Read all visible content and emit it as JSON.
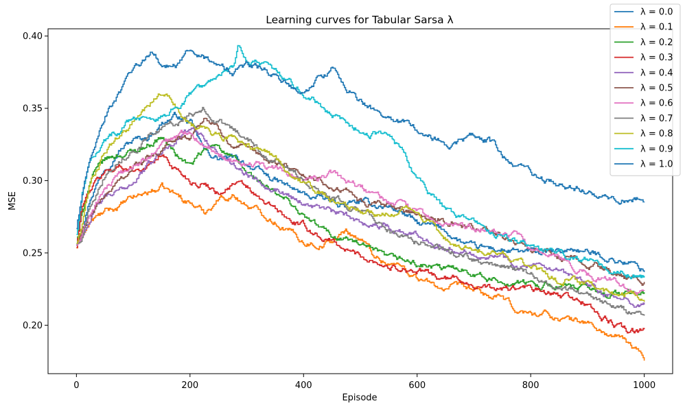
{
  "chart_data": {
    "type": "line",
    "title": "Learning curves for Tabular Sarsa λ",
    "xlabel": "Episode",
    "ylabel": "MSE",
    "xlim": [
      -50,
      1050
    ],
    "ylim": [
      0.1665,
      0.405
    ],
    "xticks": [
      0,
      200,
      400,
      600,
      800,
      1000
    ],
    "xtick_labels": [
      "0",
      "200",
      "400",
      "600",
      "800",
      "1000"
    ],
    "yticks": [
      0.2,
      0.25,
      0.3,
      0.35,
      0.4
    ],
    "ytick_labels": [
      "0.20",
      "0.25",
      "0.30",
      "0.35",
      "0.40"
    ],
    "grid": false,
    "legend_position": "top-right",
    "series": [
      {
        "name": "λ = 0.0",
        "color": "#1f77b4",
        "x": [
          0,
          10,
          25,
          50,
          75,
          100,
          125,
          150,
          175,
          200,
          225,
          250,
          275,
          300,
          325,
          350,
          375,
          400,
          425,
          450,
          475,
          500,
          525,
          550,
          575,
          600,
          625,
          650,
          675,
          700,
          725,
          750,
          775,
          800,
          825,
          850,
          875,
          900,
          925,
          950,
          975,
          1000
        ],
        "values": [
          0.256,
          0.27,
          0.29,
          0.31,
          0.322,
          0.328,
          0.33,
          0.34,
          0.345,
          0.34,
          0.32,
          0.315,
          0.315,
          0.312,
          0.305,
          0.3,
          0.295,
          0.29,
          0.288,
          0.285,
          0.283,
          0.285,
          0.283,
          0.282,
          0.278,
          0.27,
          0.268,
          0.265,
          0.258,
          0.253,
          0.253,
          0.252,
          0.25,
          0.25,
          0.25,
          0.25,
          0.253,
          0.25,
          0.248,
          0.245,
          0.243,
          0.238
        ]
      },
      {
        "name": "λ = 0.1",
        "color": "#ff7f0e",
        "x": [
          0,
          10,
          25,
          50,
          75,
          100,
          125,
          150,
          175,
          200,
          225,
          250,
          275,
          300,
          325,
          350,
          375,
          400,
          425,
          450,
          475,
          500,
          525,
          550,
          575,
          600,
          625,
          650,
          675,
          700,
          725,
          750,
          775,
          800,
          825,
          850,
          875,
          900,
          925,
          950,
          975,
          1000
        ],
        "values": [
          0.254,
          0.262,
          0.272,
          0.278,
          0.282,
          0.288,
          0.292,
          0.295,
          0.29,
          0.285,
          0.278,
          0.288,
          0.29,
          0.283,
          0.278,
          0.272,
          0.265,
          0.258,
          0.256,
          0.258,
          0.265,
          0.26,
          0.248,
          0.243,
          0.24,
          0.233,
          0.228,
          0.225,
          0.226,
          0.224,
          0.22,
          0.218,
          0.21,
          0.208,
          0.208,
          0.205,
          0.203,
          0.202,
          0.195,
          0.192,
          0.186,
          0.178
        ]
      },
      {
        "name": "λ = 0.2",
        "color": "#2ca02c",
        "x": [
          0,
          10,
          25,
          50,
          75,
          100,
          125,
          150,
          175,
          200,
          225,
          250,
          275,
          300,
          325,
          350,
          375,
          400,
          425,
          450,
          475,
          500,
          525,
          550,
          575,
          600,
          625,
          650,
          675,
          700,
          725,
          750,
          775,
          800,
          825,
          850,
          875,
          900,
          925,
          950,
          975,
          1000
        ],
        "values": [
          0.256,
          0.278,
          0.302,
          0.314,
          0.318,
          0.32,
          0.325,
          0.33,
          0.318,
          0.31,
          0.32,
          0.325,
          0.315,
          0.305,
          0.298,
          0.29,
          0.285,
          0.275,
          0.268,
          0.262,
          0.26,
          0.255,
          0.25,
          0.245,
          0.245,
          0.242,
          0.24,
          0.238,
          0.24,
          0.237,
          0.232,
          0.23,
          0.23,
          0.228,
          0.228,
          0.228,
          0.225,
          0.225,
          0.222,
          0.222,
          0.222,
          0.222
        ]
      },
      {
        "name": "λ = 0.3",
        "color": "#d62728",
        "x": [
          0,
          10,
          25,
          50,
          75,
          100,
          125,
          150,
          175,
          200,
          225,
          250,
          275,
          300,
          325,
          350,
          375,
          400,
          425,
          450,
          475,
          500,
          525,
          550,
          575,
          600,
          625,
          650,
          675,
          700,
          725,
          750,
          775,
          800,
          825,
          850,
          875,
          900,
          925,
          950,
          975,
          1000
        ],
        "values": [
          0.254,
          0.282,
          0.295,
          0.306,
          0.31,
          0.308,
          0.31,
          0.318,
          0.308,
          0.3,
          0.298,
          0.292,
          0.298,
          0.295,
          0.285,
          0.28,
          0.272,
          0.268,
          0.262,
          0.258,
          0.252,
          0.248,
          0.245,
          0.24,
          0.24,
          0.237,
          0.235,
          0.232,
          0.232,
          0.228,
          0.225,
          0.225,
          0.225,
          0.225,
          0.222,
          0.22,
          0.218,
          0.215,
          0.205,
          0.2,
          0.195,
          0.195
        ]
      },
      {
        "name": "λ = 0.4",
        "color": "#9467bd",
        "x": [
          0,
          10,
          25,
          50,
          75,
          100,
          125,
          150,
          175,
          200,
          225,
          250,
          275,
          300,
          325,
          350,
          375,
          400,
          425,
          450,
          475,
          500,
          525,
          550,
          575,
          600,
          625,
          650,
          675,
          700,
          725,
          750,
          775,
          800,
          825,
          850,
          875,
          900,
          925,
          950,
          975,
          1000
        ],
        "values": [
          0.256,
          0.262,
          0.275,
          0.288,
          0.292,
          0.3,
          0.31,
          0.32,
          0.33,
          0.335,
          0.33,
          0.318,
          0.312,
          0.305,
          0.3,
          0.295,
          0.29,
          0.285,
          0.282,
          0.278,
          0.275,
          0.272,
          0.27,
          0.268,
          0.265,
          0.262,
          0.258,
          0.255,
          0.252,
          0.25,
          0.25,
          0.248,
          0.242,
          0.24,
          0.238,
          0.235,
          0.232,
          0.228,
          0.222,
          0.218,
          0.216,
          0.215
        ]
      },
      {
        "name": "λ = 0.5",
        "color": "#8c564b",
        "x": [
          0,
          10,
          25,
          50,
          75,
          100,
          125,
          150,
          175,
          200,
          225,
          250,
          275,
          300,
          325,
          350,
          375,
          400,
          425,
          450,
          475,
          500,
          525,
          550,
          575,
          600,
          625,
          650,
          675,
          700,
          725,
          750,
          775,
          800,
          825,
          850,
          875,
          900,
          925,
          950,
          975,
          1000
        ],
        "values": [
          0.255,
          0.265,
          0.275,
          0.29,
          0.3,
          0.31,
          0.315,
          0.32,
          0.33,
          0.33,
          0.345,
          0.335,
          0.325,
          0.32,
          0.315,
          0.312,
          0.31,
          0.305,
          0.3,
          0.295,
          0.292,
          0.285,
          0.282,
          0.282,
          0.28,
          0.278,
          0.275,
          0.272,
          0.27,
          0.268,
          0.265,
          0.262,
          0.258,
          0.252,
          0.25,
          0.247,
          0.245,
          0.242,
          0.24,
          0.235,
          0.232,
          0.23
        ]
      },
      {
        "name": "λ = 0.6",
        "color": "#e377c2",
        "x": [
          0,
          10,
          25,
          50,
          75,
          100,
          125,
          150,
          175,
          200,
          225,
          250,
          275,
          300,
          325,
          350,
          375,
          400,
          425,
          450,
          475,
          500,
          525,
          550,
          575,
          600,
          625,
          650,
          675,
          700,
          725,
          750,
          775,
          800,
          825,
          850,
          875,
          900,
          925,
          950,
          975,
          1000
        ],
        "values": [
          0.255,
          0.262,
          0.278,
          0.295,
          0.302,
          0.31,
          0.315,
          0.325,
          0.33,
          0.335,
          0.325,
          0.32,
          0.315,
          0.312,
          0.31,
          0.308,
          0.305,
          0.302,
          0.3,
          0.305,
          0.3,
          0.295,
          0.29,
          0.285,
          0.282,
          0.278,
          0.272,
          0.27,
          0.268,
          0.268,
          0.268,
          0.265,
          0.262,
          0.252,
          0.248,
          0.245,
          0.24,
          0.235,
          0.232,
          0.23,
          0.225,
          0.222
        ]
      },
      {
        "name": "λ = 0.7",
        "color": "#7f7f7f",
        "x": [
          0,
          10,
          25,
          50,
          75,
          100,
          125,
          150,
          175,
          200,
          225,
          250,
          275,
          300,
          325,
          350,
          375,
          400,
          425,
          450,
          475,
          500,
          525,
          550,
          575,
          600,
          625,
          650,
          675,
          700,
          725,
          750,
          775,
          800,
          825,
          850,
          875,
          900,
          925,
          950,
          975,
          1000
        ],
        "values": [
          0.256,
          0.262,
          0.285,
          0.305,
          0.315,
          0.322,
          0.33,
          0.335,
          0.34,
          0.345,
          0.35,
          0.34,
          0.335,
          0.33,
          0.32,
          0.315,
          0.308,
          0.3,
          0.295,
          0.29,
          0.285,
          0.28,
          0.272,
          0.265,
          0.262,
          0.258,
          0.255,
          0.25,
          0.248,
          0.245,
          0.242,
          0.24,
          0.238,
          0.235,
          0.23,
          0.225,
          0.222,
          0.22,
          0.216,
          0.212,
          0.208,
          0.207
        ]
      },
      {
        "name": "λ = 0.8",
        "color": "#bcbd22",
        "x": [
          0,
          10,
          25,
          50,
          75,
          100,
          125,
          150,
          175,
          200,
          225,
          250,
          275,
          300,
          325,
          350,
          375,
          400,
          425,
          450,
          475,
          500,
          525,
          550,
          575,
          600,
          625,
          650,
          675,
          700,
          725,
          750,
          775,
          800,
          825,
          850,
          875,
          900,
          925,
          950,
          975,
          1000
        ],
        "values": [
          0.256,
          0.27,
          0.3,
          0.32,
          0.33,
          0.34,
          0.35,
          0.362,
          0.35,
          0.34,
          0.335,
          0.33,
          0.33,
          0.325,
          0.32,
          0.315,
          0.305,
          0.298,
          0.292,
          0.285,
          0.282,
          0.28,
          0.278,
          0.278,
          0.28,
          0.278,
          0.27,
          0.26,
          0.255,
          0.255,
          0.252,
          0.25,
          0.245,
          0.24,
          0.235,
          0.23,
          0.232,
          0.228,
          0.225,
          0.222,
          0.222,
          0.22
        ]
      },
      {
        "name": "λ = 0.9",
        "color": "#17becf",
        "x": [
          0,
          10,
          25,
          50,
          75,
          100,
          125,
          150,
          175,
          200,
          225,
          250,
          275,
          285,
          300,
          325,
          350,
          375,
          400,
          425,
          450,
          475,
          500,
          525,
          550,
          575,
          600,
          625,
          650,
          675,
          700,
          725,
          750,
          775,
          800,
          825,
          850,
          875,
          900,
          925,
          950,
          975,
          1000
        ],
        "values": [
          0.262,
          0.29,
          0.315,
          0.328,
          0.335,
          0.345,
          0.34,
          0.345,
          0.35,
          0.36,
          0.365,
          0.37,
          0.378,
          0.393,
          0.385,
          0.38,
          0.375,
          0.37,
          0.36,
          0.355,
          0.345,
          0.34,
          0.335,
          0.332,
          0.33,
          0.32,
          0.3,
          0.29,
          0.28,
          0.275,
          0.27,
          0.265,
          0.262,
          0.258,
          0.255,
          0.252,
          0.25,
          0.247,
          0.245,
          0.24,
          0.238,
          0.236,
          0.234
        ]
      },
      {
        "name": "λ = 1.0",
        "color": "#1f77b4",
        "x": [
          0,
          10,
          25,
          50,
          75,
          100,
          125,
          130,
          150,
          175,
          200,
          225,
          250,
          275,
          300,
          325,
          350,
          375,
          400,
          425,
          450,
          475,
          500,
          525,
          550,
          575,
          600,
          625,
          650,
          675,
          700,
          725,
          750,
          775,
          800,
          825,
          850,
          875,
          900,
          925,
          950,
          975,
          1000
        ],
        "values": [
          0.266,
          0.29,
          0.32,
          0.345,
          0.36,
          0.375,
          0.385,
          0.39,
          0.38,
          0.38,
          0.39,
          0.385,
          0.378,
          0.375,
          0.38,
          0.378,
          0.372,
          0.365,
          0.36,
          0.37,
          0.378,
          0.365,
          0.355,
          0.348,
          0.345,
          0.34,
          0.335,
          0.33,
          0.325,
          0.328,
          0.33,
          0.328,
          0.318,
          0.31,
          0.305,
          0.3,
          0.298,
          0.295,
          0.292,
          0.29,
          0.288,
          0.287,
          0.286
        ]
      }
    ]
  }
}
